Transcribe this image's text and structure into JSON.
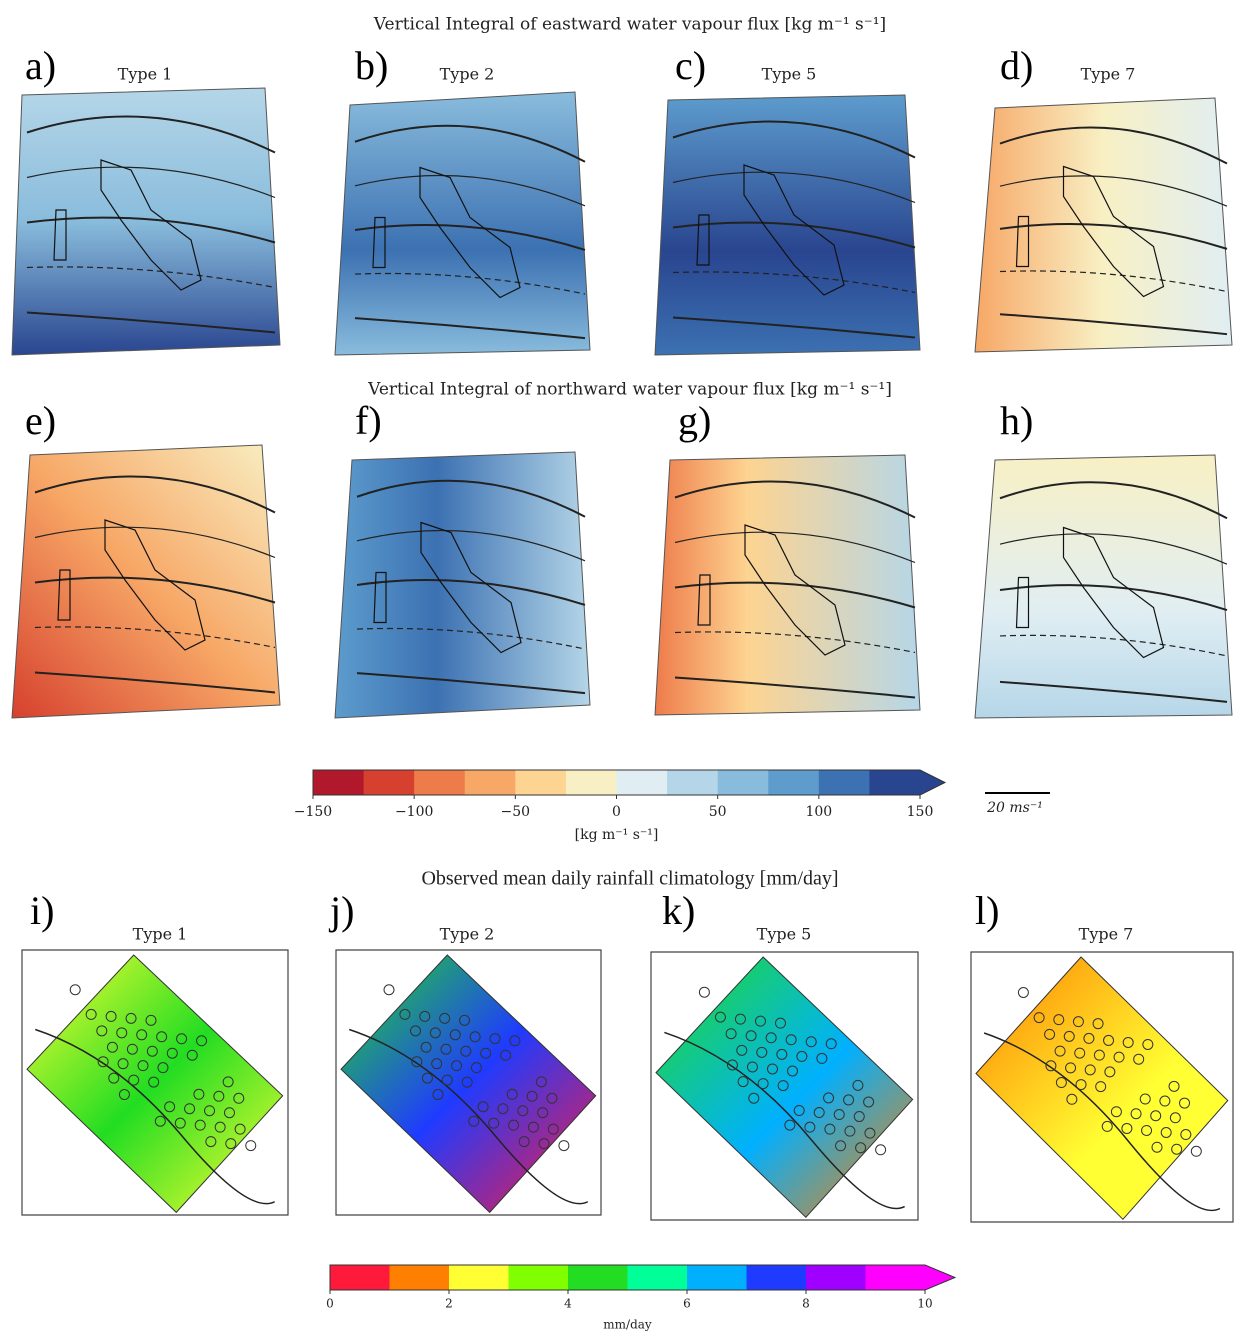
{
  "sections": [
    {
      "title": "Vertical Integral of eastward water vapour flux [kg m⁻¹ s⁻¹]",
      "panels": [
        {
          "letter": "a)",
          "type": "Type 1"
        },
        {
          "letter": "b)",
          "type": "Type 2"
        },
        {
          "letter": "c)",
          "type": "Type 5"
        },
        {
          "letter": "d)",
          "type": "Type 7"
        }
      ]
    },
    {
      "title": "Vertical Integral of northward water vapour flux [kg m⁻¹ s⁻¹]",
      "panels": [
        {
          "letter": "e)"
        },
        {
          "letter": "f)"
        },
        {
          "letter": "g)"
        },
        {
          "letter": "h)"
        }
      ]
    },
    {
      "title": "Observed mean daily rainfall climatology [mm/day]",
      "panels": [
        {
          "letter": "i)",
          "type": "Type 1"
        },
        {
          "letter": "j)",
          "type": "Type 2"
        },
        {
          "letter": "k)",
          "type": "Type 5"
        },
        {
          "letter": "l)",
          "type": "Type 7"
        }
      ]
    }
  ],
  "colorbars": [
    {
      "lim": [
        -150,
        150
      ],
      "label": "[kg m⁻¹ s⁻¹]",
      "ticks": [
        {
          "value": -150,
          "label": "−150"
        },
        {
          "value": -100,
          "label": "−100"
        },
        {
          "value": -50,
          "label": "−50"
        },
        0,
        50,
        100,
        150
      ],
      "colors": [
        "#b2182b",
        "#d6402e",
        "#ee7b4a",
        "#f7a766",
        "#fdd491",
        "#f8f0c4",
        "#e0eef3",
        "#b5d6e8",
        "#89bcdc",
        "#5d9ccd",
        "#3c71b2",
        "#29458f"
      ]
    },
    {
      "lim": [
        0,
        10
      ],
      "label": "mm/day",
      "ticks": [
        0,
        2,
        4,
        6,
        8,
        10
      ],
      "colors": [
        "#ff1a3c",
        "#ff8000",
        "#ffff33",
        "#7fff00",
        "#22dd22",
        "#00ff99",
        "#00b0ff",
        "#1f3bff",
        "#a000ff",
        "#ff00ff"
      ]
    }
  ],
  "scale_label": "20 ms⁻¹"
}
